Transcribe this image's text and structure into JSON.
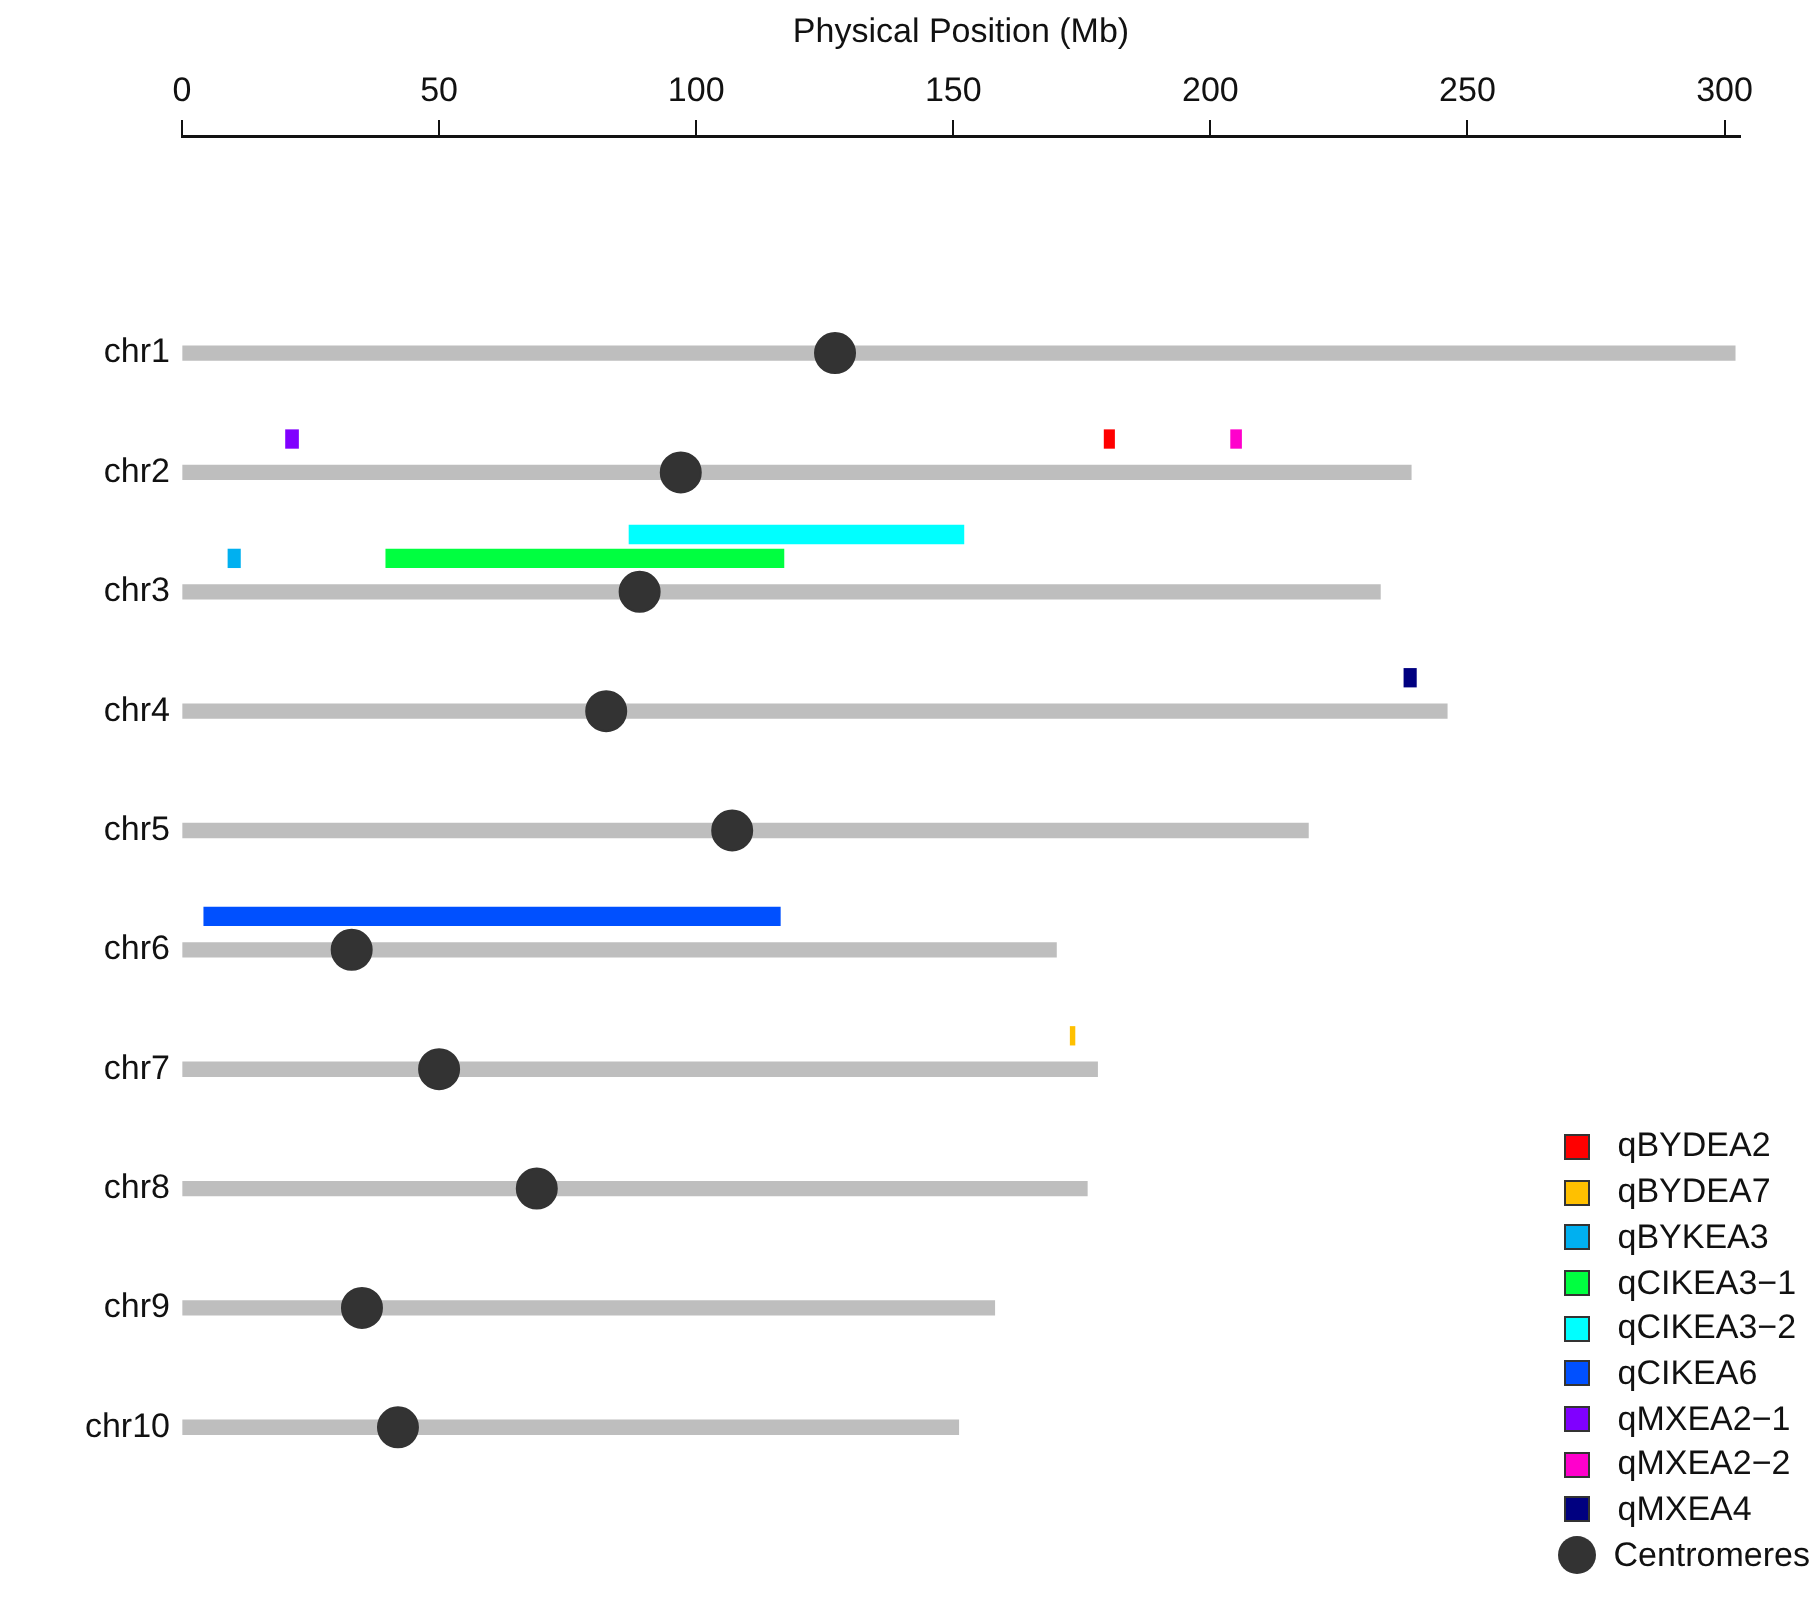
{
  "chart_data": {
    "type": "bar",
    "orientation": "horizontal",
    "xlabel": "Physical Position (Mb)",
    "categories": [
      "chr1",
      "chr2",
      "chr3",
      "chr4",
      "chr5",
      "chr6",
      "chr7",
      "chr8",
      "chr9",
      "chr10"
    ],
    "xlim": [
      0,
      303
    ],
    "xticks": [
      0,
      50,
      100,
      150,
      200,
      250,
      300
    ],
    "grid": false,
    "legend": "bottom right",
    "marker": "circle",
    "series": [
      {
        "color": "#bebebe",
        "values": [
          302,
          239,
          233,
          246,
          219,
          170,
          178,
          176,
          158,
          151
        ]
      },
      {
        "name": "qBYDEA2",
        "color": "#ff0000",
        "values": [
          null,
          1.9,
          null,
          null,
          null,
          null,
          null,
          null,
          null,
          null
        ],
        "base": [
          null,
          179.4,
          null,
          null,
          null,
          null,
          null,
          null,
          null,
          null
        ]
      },
      {
        "name": "qBYDEA7",
        "color": "#ffc000",
        "values": [
          null,
          null,
          null,
          null,
          null,
          null,
          0.8,
          null,
          null,
          null
        ],
        "base": [
          null,
          null,
          null,
          null,
          null,
          null,
          172.8,
          null,
          null,
          null
        ]
      },
      {
        "name": "qBYKEA3",
        "color": "#00b0f0",
        "values": [
          null,
          null,
          2.3,
          null,
          null,
          null,
          null,
          null,
          null,
          null
        ],
        "base": [
          null,
          null,
          9,
          null,
          null,
          null,
          null,
          null,
          null,
          null
        ]
      },
      {
        "name": "qCIKEA3−1",
        "color": "#00ff40",
        "values": [
          null,
          null,
          77.3,
          null,
          null,
          null,
          null,
          null,
          null,
          null
        ],
        "base": [
          null,
          null,
          39.7,
          null,
          null,
          null,
          null,
          null,
          null,
          null
        ]
      },
      {
        "name": "qCIKEA3−2",
        "color": "#00ffff",
        "values": [
          null,
          null,
          65,
          null,
          null,
          null,
          null,
          null,
          null,
          null
        ],
        "base": [
          null,
          null,
          87,
          null,
          null,
          null,
          null,
          null,
          null,
          null
        ]
      },
      {
        "name": "qCIKEA6",
        "color": "#0050ff",
        "values": [
          null,
          null,
          null,
          null,
          null,
          112,
          null,
          null,
          null,
          null
        ],
        "base": [
          null,
          null,
          null,
          null,
          null,
          4.3,
          null,
          null,
          null,
          null
        ]
      },
      {
        "name": "qMXEA2−1",
        "color": "#8000ff",
        "values": [
          null,
          2.4,
          null,
          null,
          null,
          null,
          null,
          null,
          null,
          null
        ],
        "base": [
          null,
          20.2,
          null,
          null,
          null,
          null,
          null,
          null,
          null,
          null
        ]
      },
      {
        "name": "qMXEA2−2",
        "color": "#ff00cc",
        "values": [
          null,
          2,
          null,
          null,
          null,
          null,
          null,
          null,
          null,
          null
        ],
        "base": [
          null,
          204,
          null,
          null,
          null,
          null,
          null,
          null,
          null,
          null
        ]
      },
      {
        "name": "qMXEA4",
        "color": "#000080",
        "values": [
          null,
          null,
          null,
          2.3,
          null,
          null,
          null,
          null,
          null,
          null
        ],
        "base": [
          null,
          null,
          null,
          237.7,
          null,
          null,
          null,
          null,
          null,
          null
        ]
      },
      {
        "name": "Centromeres",
        "type": "scatter",
        "color": "#333333",
        "values": [
          127,
          97,
          89,
          82.5,
          107,
          33,
          50,
          69,
          35,
          42
        ]
      }
    ]
  }
}
